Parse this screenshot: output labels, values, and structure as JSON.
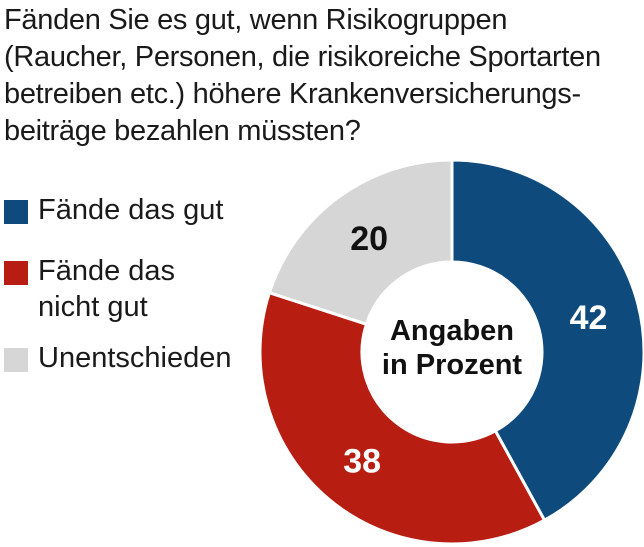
{
  "chart_data": {
    "type": "pie",
    "title_lines": [
      "Fänden Sie es gut, wenn Risikogruppen",
      "(Raucher, Personen, die risikoreiche Sportarten",
      "betreiben etc.) höhere Krankenversicherungs-",
      "beiträge bezahlen müssten?"
    ],
    "center_label_lines": [
      "Angaben",
      "in Prozent"
    ],
    "categories": [
      "Fände das gut",
      "Fände das nicht gut",
      "Unentschieden"
    ],
    "values": [
      42,
      38,
      20
    ],
    "colors": [
      "#0f4a7c",
      "#b81d12",
      "#d6d6d6"
    ],
    "label_colors": [
      "#ffffff",
      "#ffffff",
      "#111111"
    ],
    "legend": {
      "placement": "left",
      "lines": [
        [
          "Fände das gut"
        ],
        [
          "Fände das",
          "nicht gut"
        ],
        [
          "Unentschieden"
        ]
      ]
    }
  }
}
